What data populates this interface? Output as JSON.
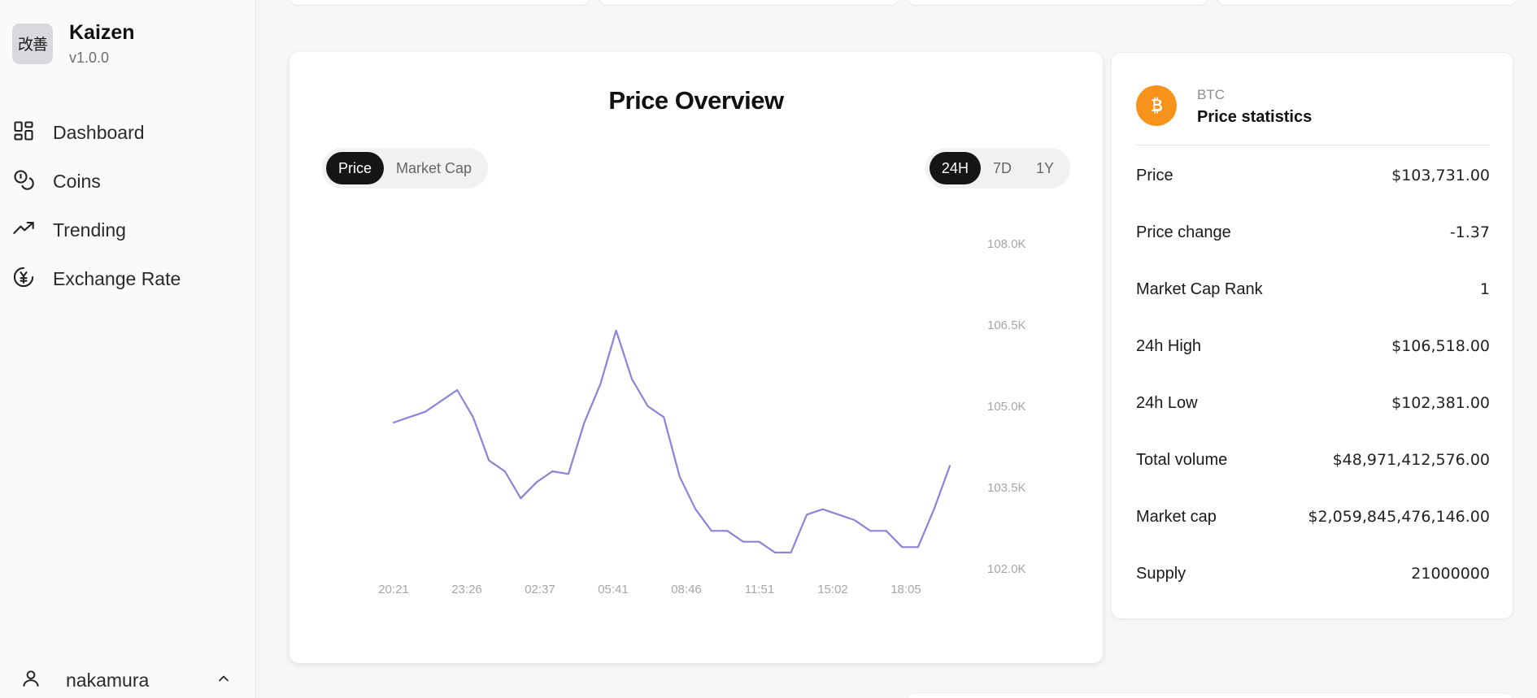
{
  "app": {
    "logo_text": "改善",
    "name": "Kaizen",
    "version": "v1.0.0"
  },
  "nav": {
    "items": [
      {
        "label": "Dashboard",
        "icon": "dashboard-icon"
      },
      {
        "label": "Coins",
        "icon": "coins-icon"
      },
      {
        "label": "Trending",
        "icon": "trending-icon"
      },
      {
        "label": "Exchange Rate",
        "icon": "exchange-rate-icon"
      }
    ]
  },
  "user": {
    "name": "nakamura",
    "icon": "user-icon",
    "caret": "chevron-up-icon"
  },
  "chart_card": {
    "title": "Price Overview",
    "type_tabs": [
      {
        "label": "Price",
        "active": true
      },
      {
        "label": "Market Cap",
        "active": false
      }
    ],
    "range_tabs": [
      {
        "label": "24H",
        "active": true
      },
      {
        "label": "7D",
        "active": false
      },
      {
        "label": "1Y",
        "active": false
      }
    ]
  },
  "chart_data": {
    "type": "line",
    "title": "Price Overview",
    "xlabel": "",
    "ylabel": "",
    "x_ticks": [
      "20:21",
      "23:26",
      "02:37",
      "05:41",
      "08:46",
      "11:51",
      "15:02",
      "18:05"
    ],
    "y_ticks": [
      "108.0K",
      "106.5K",
      "105.0K",
      "103.5K",
      "102.0K"
    ],
    "ylim": [
      102000,
      108000
    ],
    "grid": false,
    "line_color": "#8a84d6",
    "series": [
      {
        "values": [
          104700,
          104800,
          104900,
          105100,
          105300,
          104800,
          104000,
          103800,
          103300,
          103600,
          103800,
          103750,
          104700,
          105400,
          106400,
          105500,
          105000,
          104800,
          103700,
          103100,
          102700,
          102700,
          102500,
          102500,
          102300,
          102300,
          103000,
          103100,
          103000,
          102900,
          102700,
          102700,
          102400,
          102400,
          103100,
          103900
        ]
      }
    ]
  },
  "stats": {
    "coin_symbol": "BTC",
    "title": "Price statistics",
    "coin_icon": "bitcoin-icon",
    "coin_color": "#f7931a",
    "rows": [
      {
        "label": "Price",
        "value": "$103,731.00"
      },
      {
        "label": "Price change",
        "value": "-1.37"
      },
      {
        "label": "Market Cap Rank",
        "value": "1"
      },
      {
        "label": "24h High",
        "value": "$106,518.00"
      },
      {
        "label": "24h Low",
        "value": "$102,381.00"
      },
      {
        "label": "Total volume",
        "value": "$48,971,412,576.00"
      },
      {
        "label": "Market cap",
        "value": "$2,059,845,476,146.00"
      },
      {
        "label": "Supply",
        "value": "21000000"
      }
    ]
  }
}
